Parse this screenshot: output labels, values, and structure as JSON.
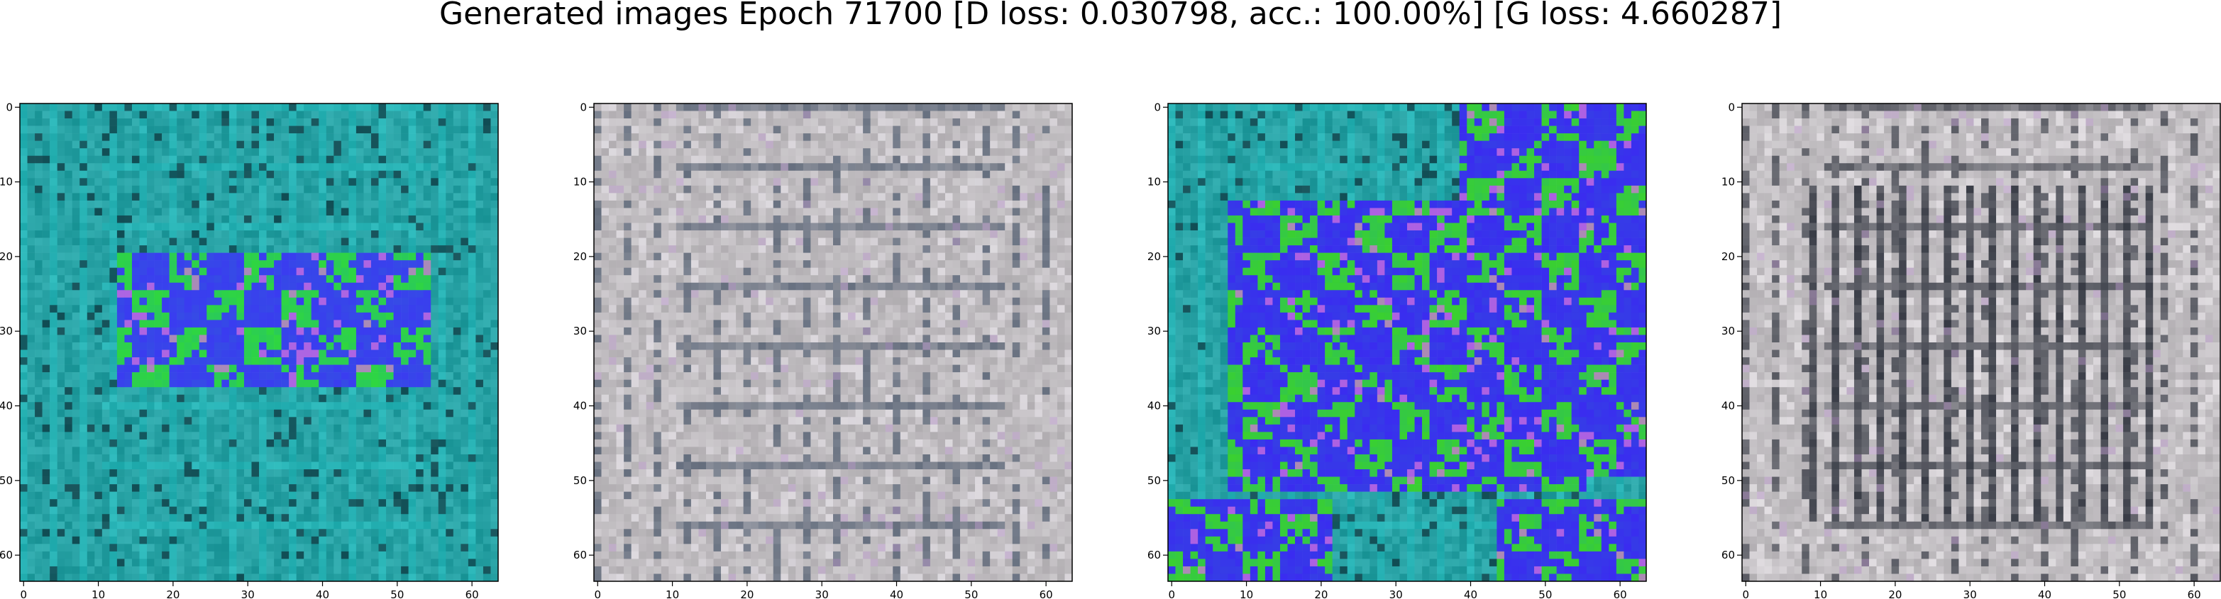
{
  "figure": {
    "title": "Generated images Epoch 71700 [D loss: 0.030798, acc.: 100.00%] [G loss: 4.660287]"
  },
  "chart_data": [
    {
      "type": "heatmap",
      "title": "",
      "xlabel": "",
      "ylabel": "",
      "xlim": [
        -0.5,
        63.5
      ],
      "ylim": [
        63.5,
        -0.5
      ],
      "xticks": [
        0,
        10,
        20,
        30,
        40,
        50,
        60
      ],
      "yticks": [
        0,
        10,
        20,
        30,
        40,
        50,
        60
      ],
      "grid": false,
      "palette": {
        "background": "#1aa5a8",
        "accent1": "#3a3cf0",
        "accent2": "#2fd640",
        "accent3": "#e070e0"
      }
    },
    {
      "type": "heatmap",
      "title": "",
      "xlabel": "",
      "ylabel": "",
      "xlim": [
        -0.5,
        63.5
      ],
      "ylim": [
        63.5,
        -0.5
      ],
      "xticks": [
        0,
        10,
        20,
        30,
        40,
        50,
        60
      ],
      "yticks": [
        0,
        10,
        20,
        30,
        40,
        50,
        60
      ],
      "grid": false,
      "palette": {
        "background": "#c8c4c8",
        "accent1": "#3a4a60",
        "accent2": "#e8e4ea",
        "accent3": "#b090c0"
      }
    },
    {
      "type": "heatmap",
      "title": "",
      "xlabel": "",
      "ylabel": "",
      "xlim": [
        -0.5,
        63.5
      ],
      "ylim": [
        63.5,
        -0.5
      ],
      "xticks": [
        0,
        10,
        20,
        30,
        40,
        50,
        60
      ],
      "yticks": [
        0,
        10,
        20,
        30,
        40,
        50,
        60
      ],
      "grid": false,
      "palette": {
        "background": "#1aa5a8",
        "accent1": "#3a2cf0",
        "accent2": "#3ad030",
        "accent3": "#e070e0"
      }
    },
    {
      "type": "heatmap",
      "title": "",
      "xlabel": "",
      "ylabel": "",
      "xlim": [
        -0.5,
        63.5
      ],
      "ylim": [
        63.5,
        -0.5
      ],
      "xticks": [
        0,
        10,
        20,
        30,
        40,
        50,
        60
      ],
      "yticks": [
        0,
        10,
        20,
        30,
        40,
        50,
        60
      ],
      "grid": false,
      "palette": {
        "background": "#cac6ca",
        "accent1": "#202530",
        "accent2": "#eeeaee",
        "accent3": "#b090c0"
      }
    }
  ]
}
